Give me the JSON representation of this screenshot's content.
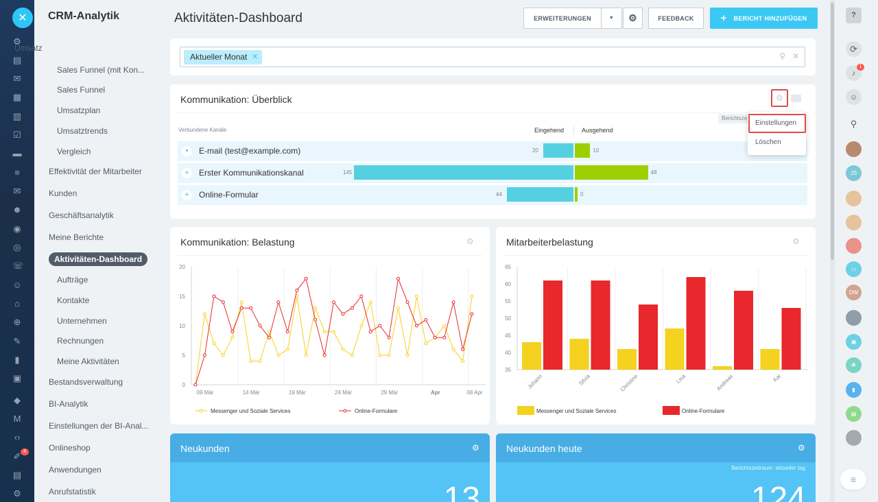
{
  "colors": {
    "accent": "#3bc8f5",
    "incoming": "#55d0e0",
    "outgoing": "#9dcf00",
    "series_yellow": "#f4d21f",
    "series_red": "#e8282c",
    "highlight": "#e04a4a"
  },
  "rail": {
    "close_icon": "close-icon",
    "badge": "4"
  },
  "menu": {
    "title": "CRM-Analytik",
    "items": [
      {
        "label": "Umsatz",
        "level": 0
      },
      {
        "label": "Sales Funnel (mit Kon...",
        "level": 1
      },
      {
        "label": "Sales Funnel",
        "level": 1
      },
      {
        "label": "Umsatzplan",
        "level": 1
      },
      {
        "label": "Umsatztrends",
        "level": 1
      },
      {
        "label": "Vergleich",
        "level": 1
      },
      {
        "label": "Effektivität der Mitarbeiter",
        "level": 0
      },
      {
        "label": "Kunden",
        "level": 0
      },
      {
        "label": "Geschäftsanalytik",
        "level": 0
      },
      {
        "label": "Meine Berichte",
        "level": 0
      },
      {
        "label": "Aktivitäten-Dashboard",
        "level": 0
      },
      {
        "label": "Aufträge",
        "level": 1
      },
      {
        "label": "Kontakte",
        "level": 1
      },
      {
        "label": "Unternehmen",
        "level": 1
      },
      {
        "label": "Rechnungen",
        "level": 1
      },
      {
        "label": "Meine Aktivitäten",
        "level": 1
      },
      {
        "label": "Bestandsverwaltung",
        "level": 0
      },
      {
        "label": "BI-Analytik",
        "level": 0
      },
      {
        "label": "Einstellungen der BI-Anal...",
        "level": 0
      },
      {
        "label": "Onlineshop",
        "level": 0
      },
      {
        "label": "Anwendungen",
        "level": 0
      },
      {
        "label": "Anrufstatistik",
        "level": 0
      }
    ]
  },
  "header": {
    "title": "Aktivitäten-Dashboard",
    "extensions_label": "ERWEITERUNGEN",
    "feedback_label": "FEEDBACK",
    "add_report_label": "BERICHT HINZUFÜGEN"
  },
  "filter": {
    "chip": "Aktueller Monat"
  },
  "overview": {
    "title": "Kommunikation: Überblick",
    "col_channels": "Verbundene Kanäle",
    "col_incoming": "Eingehend",
    "col_outgoing": "Ausgehend",
    "period_tag": "Berichtsze",
    "rows": [
      {
        "label": "E-mail (test@example.com)",
        "incoming": 20,
        "outgoing": 10
      },
      {
        "label": "Erster Kommunikationskanal",
        "incoming": 145,
        "outgoing": 48
      },
      {
        "label": "Online-Formular",
        "incoming": 44,
        "outgoing": 0
      }
    ],
    "menu": {
      "settings": "Einstellungen",
      "delete": "Löschen"
    }
  },
  "load": {
    "title": "Kommunikation: Belastung",
    "chart_data": {
      "type": "line",
      "x_ticks": [
        "09 Mär",
        "14 Mär",
        "19 Mär",
        "24 Mär",
        "29 Mär",
        "Apr",
        "08 Apr"
      ],
      "y_ticks": [
        "0",
        "5",
        "10",
        "15",
        "20"
      ],
      "ylim": [
        0,
        20
      ],
      "series": [
        {
          "name": "Messenger und Soziale Services",
          "color": "#f4d21f",
          "values": [
            0,
            12,
            7,
            5,
            8,
            14,
            4,
            4,
            9,
            5,
            6,
            15,
            5,
            13,
            9,
            9,
            6,
            5,
            10,
            14,
            5,
            5,
            13,
            5,
            15,
            7,
            8,
            10,
            6,
            4,
            15
          ]
        },
        {
          "name": "Online-Formulare",
          "color": "#e8282c",
          "values": [
            0,
            5,
            15,
            14,
            9,
            13,
            13,
            10,
            8,
            14,
            9,
            16,
            18,
            11,
            5,
            14,
            12,
            13,
            15,
            9,
            10,
            8,
            18,
            14,
            10,
            11,
            8,
            8,
            14,
            6,
            12
          ]
        }
      ]
    }
  },
  "employee": {
    "title": "Mitarbeiterbelastung",
    "chart_data": {
      "type": "bar",
      "categories": [
        "Johann",
        "Silvia",
        "Christine",
        "Lisa",
        "Andreas",
        "Kai"
      ],
      "y_ticks": [
        "35",
        "40",
        "45",
        "50",
        "55",
        "60",
        "65"
      ],
      "ylim": [
        35,
        65
      ],
      "series": [
        {
          "name": "Messenger und Soziale Services",
          "color": "#f4d21f",
          "values": [
            43,
            44,
            41,
            47,
            36,
            41
          ]
        },
        {
          "name": "Online-Formulare",
          "color": "#e8282c",
          "values": [
            61,
            61,
            54,
            62,
            58,
            53
          ]
        }
      ]
    }
  },
  "new_customers": {
    "title": "Neukunden",
    "value": "13"
  },
  "new_customers_today": {
    "title": "Neukunden heute",
    "period": "Berichtszeitraum: aktueller tag",
    "value": "124"
  },
  "right_rail": {
    "notification_badge": "1",
    "avatars": [
      {
        "initials": "JS",
        "color": "#7bc8d7"
      },
      {
        "initials": "DW",
        "color": "#d0a58f"
      }
    ]
  }
}
